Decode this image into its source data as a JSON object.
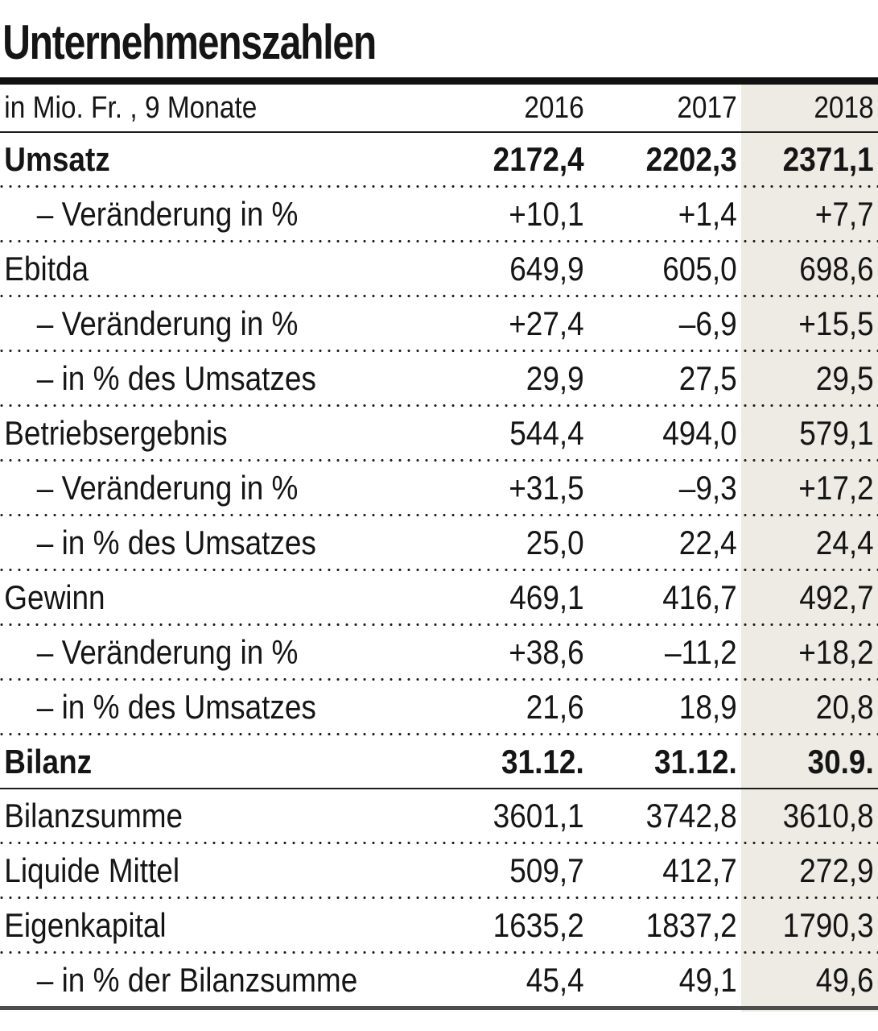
{
  "title": "Unternehmenszahlen",
  "table": {
    "unit_label": "in Mio. Fr. , 9 Monate",
    "columns": [
      "2016",
      "2017",
      "2018"
    ],
    "highlight_column": "2018",
    "rows": [
      {
        "label": "Umsatz",
        "values": [
          "2172,4",
          "2202,3",
          "2371,1"
        ],
        "bold": true,
        "indent": false,
        "sep": "dotted"
      },
      {
        "label": "– Veränderung in %",
        "values": [
          "+10,1",
          "+1,4",
          "+7,7"
        ],
        "bold": false,
        "indent": true,
        "sep": "dotted"
      },
      {
        "label": "Ebitda",
        "values": [
          "649,9",
          "605,0",
          "698,6"
        ],
        "bold": false,
        "indent": false,
        "sep": "dotted"
      },
      {
        "label": "– Veränderung in %",
        "values": [
          "+27,4",
          "–6,9",
          "+15,5"
        ],
        "bold": false,
        "indent": true,
        "sep": "dotted"
      },
      {
        "label": "– in % des Umsatzes",
        "values": [
          "29,9",
          "27,5",
          "29,5"
        ],
        "bold": false,
        "indent": true,
        "sep": "dotted"
      },
      {
        "label": "Betriebsergebnis",
        "values": [
          "544,4",
          "494,0",
          "579,1"
        ],
        "bold": false,
        "indent": false,
        "sep": "dotted"
      },
      {
        "label": "– Veränderung in %",
        "values": [
          "+31,5",
          "–9,3",
          "+17,2"
        ],
        "bold": false,
        "indent": true,
        "sep": "dotted"
      },
      {
        "label": "– in % des Umsatzes",
        "values": [
          "25,0",
          "22,4",
          "24,4"
        ],
        "bold": false,
        "indent": true,
        "sep": "dotted"
      },
      {
        "label": "Gewinn",
        "values": [
          "469,1",
          "416,7",
          "492,7"
        ],
        "bold": false,
        "indent": false,
        "sep": "dotted"
      },
      {
        "label": "– Veränderung in %",
        "values": [
          "+38,6",
          "–11,2",
          "+18,2"
        ],
        "bold": false,
        "indent": true,
        "sep": "dotted"
      },
      {
        "label": "– in % des Umsatzes",
        "values": [
          "21,6",
          "18,9",
          "20,8"
        ],
        "bold": false,
        "indent": true,
        "sep": "dotted"
      },
      {
        "label": "Bilanz",
        "values": [
          "31.12.",
          "31.12.",
          "30.9."
        ],
        "bold": true,
        "indent": false,
        "sep": "solid"
      },
      {
        "label": "Bilanzsumme",
        "values": [
          "3601,1",
          "3742,8",
          "3610,8"
        ],
        "bold": false,
        "indent": false,
        "sep": "dotted"
      },
      {
        "label": "Liquide Mittel",
        "values": [
          "509,7",
          "412,7",
          "272,9"
        ],
        "bold": false,
        "indent": false,
        "sep": "dotted"
      },
      {
        "label": "Eigenkapital",
        "values": [
          "1635,2",
          "1837,2",
          "1790,3"
        ],
        "bold": false,
        "indent": false,
        "sep": "dotted"
      },
      {
        "label": "– in % der Bilanzsumme",
        "values": [
          "45,4",
          "49,1",
          "49,6"
        ],
        "bold": false,
        "indent": true,
        "sep": "none"
      }
    ]
  },
  "chart_data": {
    "type": "table",
    "title": "Unternehmenszahlen",
    "unit": "in Mio. Fr. , 9 Monate",
    "columns": [
      "2016",
      "2017",
      "2018"
    ],
    "highlighted_column": "2018",
    "rows": [
      {
        "label": "Umsatz",
        "values": [
          2172.4,
          2202.3,
          2371.1
        ]
      },
      {
        "label": "Umsatz – Veränderung in %",
        "values": [
          10.1,
          1.4,
          7.7
        ]
      },
      {
        "label": "Ebitda",
        "values": [
          649.9,
          605.0,
          698.6
        ]
      },
      {
        "label": "Ebitda – Veränderung in %",
        "values": [
          27.4,
          -6.9,
          15.5
        ]
      },
      {
        "label": "Ebitda – in % des Umsatzes",
        "values": [
          29.9,
          27.5,
          29.5
        ]
      },
      {
        "label": "Betriebsergebnis",
        "values": [
          544.4,
          494.0,
          579.1
        ]
      },
      {
        "label": "Betriebsergebnis – Veränderung in %",
        "values": [
          31.5,
          -9.3,
          17.2
        ]
      },
      {
        "label": "Betriebsergebnis – in % des Umsatzes",
        "values": [
          25.0,
          22.4,
          24.4
        ]
      },
      {
        "label": "Gewinn",
        "values": [
          469.1,
          416.7,
          492.7
        ]
      },
      {
        "label": "Gewinn – Veränderung in %",
        "values": [
          38.6,
          -11.2,
          18.2
        ]
      },
      {
        "label": "Gewinn – in % des Umsatzes",
        "values": [
          21.6,
          18.9,
          20.8
        ]
      },
      {
        "label": "Bilanz (Stichtag)",
        "values": [
          "31.12.",
          "31.12.",
          "30.9."
        ]
      },
      {
        "label": "Bilanzsumme",
        "values": [
          3601.1,
          3742.8,
          3610.8
        ]
      },
      {
        "label": "Liquide Mittel",
        "values": [
          509.7,
          412.7,
          272.9
        ]
      },
      {
        "label": "Eigenkapital",
        "values": [
          1635.2,
          1837.2,
          1790.3
        ]
      },
      {
        "label": "Eigenkapital – in % der Bilanzsumme",
        "values": [
          45.4,
          49.1,
          49.6
        ]
      }
    ]
  },
  "colors": {
    "text": "#151515",
    "highlight_bg": "#EDEBE4",
    "top_rule": "#111111",
    "separator": "#1C1C1C",
    "bottom_rule": "#4D4D4D"
  }
}
